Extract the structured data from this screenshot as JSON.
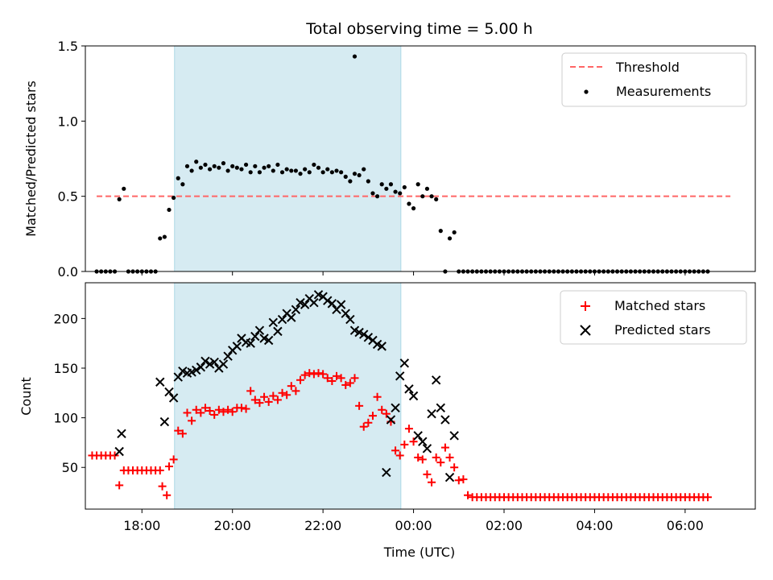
{
  "chart_data": [
    {
      "type": "scatter",
      "title": "Total observing time = 5.00 h",
      "xlabel": "",
      "ylabel": "Matched/Predicted stars",
      "xlim": [
        16.75,
        31.55
      ],
      "ylim": [
        0,
        1.5
      ],
      "yticks": [
        0,
        0.5,
        1.0,
        1.5
      ],
      "ytick_labels": [
        "0.0",
        "0.5",
        "1.0",
        "1.5"
      ],
      "xticks": [
        18,
        20,
        22,
        24,
        26,
        28,
        30
      ],
      "xtick_labels": [
        "",
        "",
        "",
        "",
        "",
        "",
        ""
      ],
      "observing_window": [
        18.72,
        23.72
      ],
      "legend": {
        "position": "top-right",
        "entries": [
          "Threshold",
          "Measurements"
        ]
      },
      "threshold": {
        "name": "Threshold",
        "value": 0.5,
        "x_range": [
          17.0,
          31.0
        ],
        "color": "#ff6666"
      },
      "series": [
        {
          "name": "Measurements",
          "color": "#000000",
          "x": [
            17.0,
            17.1,
            17.2,
            17.3,
            17.4,
            17.5,
            17.6,
            17.7,
            17.8,
            17.9,
            18.0,
            18.1,
            18.2,
            18.3,
            18.4,
            18.5,
            18.6,
            18.7,
            18.8,
            18.9,
            19.0,
            19.1,
            19.2,
            19.3,
            19.4,
            19.5,
            19.6,
            19.7,
            19.8,
            19.9,
            20.0,
            20.1,
            20.2,
            20.3,
            20.4,
            20.5,
            20.6,
            20.7,
            20.8,
            20.9,
            21.0,
            21.1,
            21.2,
            21.3,
            21.4,
            21.5,
            21.6,
            21.7,
            21.8,
            21.9,
            22.0,
            22.1,
            22.2,
            22.3,
            22.4,
            22.5,
            22.6,
            22.7,
            22.8,
            22.9,
            23.0,
            23.1,
            23.2,
            23.3,
            23.4,
            23.5,
            23.6,
            23.7,
            23.8,
            23.9,
            24.0,
            24.1,
            24.2,
            24.3,
            24.4,
            24.5,
            24.6,
            24.7,
            24.8,
            24.9,
            25.0,
            25.1,
            25.2,
            25.3,
            25.4,
            25.5,
            25.6,
            25.7,
            25.8,
            25.9,
            26.0,
            26.1,
            26.2,
            26.3,
            26.4,
            26.5,
            26.6,
            26.7,
            26.8,
            26.9,
            27.0,
            27.1,
            27.2,
            27.3,
            27.4,
            27.5,
            27.6,
            27.7,
            27.8,
            27.9,
            28.0,
            28.1,
            28.2,
            28.3,
            28.4,
            28.5,
            28.6,
            28.7,
            28.8,
            28.9,
            29.0,
            29.1,
            29.2,
            29.3,
            29.4,
            29.5,
            29.6,
            29.7,
            29.8,
            29.9,
            30.0,
            30.1,
            30.2,
            30.3,
            30.4,
            30.5
          ],
          "y": [
            0,
            0,
            0,
            0,
            0,
            0.48,
            0.55,
            0,
            0,
            0,
            0,
            0,
            0,
            0,
            0.22,
            0.23,
            0.41,
            0.49,
            0.62,
            0.58,
            0.7,
            0.67,
            0.73,
            0.69,
            0.71,
            0.68,
            0.7,
            0.69,
            0.72,
            0.67,
            0.7,
            0.69,
            0.68,
            0.71,
            0.66,
            0.7,
            0.66,
            0.69,
            0.7,
            0.67,
            0.71,
            0.66,
            0.68,
            0.67,
            0.67,
            0.65,
            0.68,
            0.66,
            0.71,
            0.69,
            0.66,
            0.68,
            0.66,
            0.67,
            0.66,
            0.63,
            0.6,
            0.65,
            0.64,
            0.68,
            0.6,
            0.52,
            0.5,
            0.58,
            0.55,
            0.58,
            0.53,
            0.52,
            0.56,
            0.45,
            0.42,
            0.58,
            0.5,
            0.55,
            0.5,
            0.48,
            0.27,
            0,
            0.22,
            0.26,
            0,
            0,
            0,
            0,
            0,
            0,
            0,
            0,
            0,
            0,
            0,
            0,
            0,
            0,
            0,
            0,
            0,
            0,
            0,
            0,
            0,
            0,
            0,
            0,
            0,
            0,
            0,
            0,
            0,
            0,
            0,
            0,
            0,
            0,
            0,
            0,
            0,
            0,
            0,
            0,
            0,
            0,
            0,
            0,
            0,
            0,
            0,
            0,
            0,
            0,
            0,
            0,
            0,
            0,
            0,
            0
          ],
          "extra_points": [
            [
              22.7,
              1.43
            ]
          ]
        }
      ]
    },
    {
      "type": "scatter",
      "title": "",
      "xlabel": "Time (UTC)",
      "ylabel": "Count",
      "xlim": [
        16.75,
        31.55
      ],
      "ylim": [
        8,
        236
      ],
      "yticks": [
        50,
        100,
        150,
        200
      ],
      "ytick_labels": [
        "50",
        "100",
        "150",
        "200"
      ],
      "xticks": [
        18,
        20,
        22,
        24,
        26,
        28,
        30
      ],
      "xtick_labels": [
        "18:00",
        "20:00",
        "22:00",
        "00:00",
        "02:00",
        "04:00",
        "06:00"
      ],
      "observing_window": [
        18.72,
        23.72
      ],
      "legend": {
        "position": "top-right",
        "entries": [
          "Matched stars",
          "Predicted stars"
        ]
      },
      "series": [
        {
          "name": "Matched stars",
          "color": "#ff0000",
          "marker": "+",
          "x": [
            16.9,
            17.0,
            17.1,
            17.2,
            17.3,
            17.4,
            17.5,
            17.6,
            17.7,
            17.8,
            17.9,
            18.0,
            18.1,
            18.2,
            18.3,
            18.4,
            18.45,
            18.55,
            18.6,
            18.7,
            18.8,
            18.9,
            19.0,
            19.1,
            19.2,
            19.3,
            19.4,
            19.5,
            19.6,
            19.7,
            19.8,
            19.9,
            20.0,
            20.1,
            20.2,
            20.3,
            20.4,
            20.5,
            20.6,
            20.7,
            20.8,
            20.9,
            21.0,
            21.1,
            21.2,
            21.3,
            21.4,
            21.5,
            21.6,
            21.7,
            21.8,
            21.9,
            22.0,
            22.1,
            22.2,
            22.3,
            22.4,
            22.5,
            22.6,
            22.7,
            22.8,
            22.9,
            23.0,
            23.1,
            23.2,
            23.3,
            23.4,
            23.5,
            23.6,
            23.7,
            23.8,
            23.9,
            24.0,
            24.1,
            24.2,
            24.3,
            24.4,
            24.5,
            24.6,
            24.7,
            24.8,
            24.9,
            25.0,
            25.1,
            25.2,
            25.3,
            25.4,
            25.5,
            25.6,
            25.7,
            25.8,
            25.9,
            26.0,
            26.1,
            26.2,
            26.3,
            26.4,
            26.5,
            26.6,
            26.7,
            26.8,
            26.9,
            27.0,
            27.1,
            27.2,
            27.3,
            27.4,
            27.5,
            27.6,
            27.7,
            27.8,
            27.9,
            28.0,
            28.1,
            28.2,
            28.3,
            28.4,
            28.5,
            28.6,
            28.7,
            28.8,
            28.9,
            29.0,
            29.1,
            29.2,
            29.3,
            29.4,
            29.5,
            29.6,
            29.7,
            29.8,
            29.9,
            30.0,
            30.1,
            30.2,
            30.3,
            30.4,
            30.5
          ],
          "y": [
            62,
            62,
            62,
            62,
            62,
            62,
            32,
            47,
            47,
            47,
            47,
            47,
            47,
            47,
            47,
            47,
            31,
            22,
            51,
            58,
            87,
            84,
            105,
            97,
            108,
            105,
            110,
            107,
            103,
            108,
            106,
            108,
            106,
            110,
            110,
            109,
            127,
            118,
            115,
            121,
            116,
            122,
            118,
            125,
            123,
            132,
            127,
            138,
            143,
            145,
            144,
            145,
            144,
            140,
            137,
            142,
            140,
            133,
            135,
            140,
            112,
            91,
            95,
            102,
            121,
            108,
            104,
            96,
            67,
            62,
            73,
            89,
            76,
            60,
            58,
            43,
            35,
            60,
            55,
            70,
            60,
            50,
            37,
            38,
            22,
            20,
            20,
            20,
            20,
            20,
            20,
            20,
            20,
            20,
            20,
            20,
            20,
            20,
            20,
            20,
            20,
            20,
            20,
            20,
            20,
            20,
            20,
            20,
            20,
            20,
            20,
            20,
            20,
            20,
            20,
            20,
            20,
            20,
            20,
            20,
            20,
            20,
            20,
            20,
            20,
            20,
            20,
            20,
            20,
            20,
            20,
            20,
            20,
            20,
            20,
            20,
            20,
            20
          ]
        },
        {
          "name": "Predicted stars",
          "color": "#000000",
          "marker": "x",
          "x": [
            17.5,
            17.55,
            18.4,
            18.5,
            18.6,
            18.7,
            18.8,
            18.9,
            19.0,
            19.1,
            19.2,
            19.3,
            19.4,
            19.5,
            19.6,
            19.7,
            19.8,
            19.9,
            20.0,
            20.1,
            20.2,
            20.3,
            20.4,
            20.5,
            20.6,
            20.7,
            20.8,
            20.9,
            21.0,
            21.1,
            21.2,
            21.3,
            21.4,
            21.5,
            21.6,
            21.7,
            21.8,
            21.9,
            22.0,
            22.1,
            22.2,
            22.3,
            22.4,
            22.5,
            22.6,
            22.7,
            22.8,
            22.9,
            23.0,
            23.1,
            23.2,
            23.3,
            23.4,
            23.5,
            23.6,
            23.7,
            23.8,
            23.9,
            24.0,
            24.1,
            24.2,
            24.3,
            24.4,
            24.5,
            24.6,
            24.7,
            24.8,
            24.9
          ],
          "y": [
            66,
            84,
            136,
            96,
            126,
            120,
            141,
            147,
            145,
            146,
            148,
            151,
            157,
            154,
            156,
            150,
            154,
            162,
            168,
            172,
            180,
            176,
            175,
            182,
            188,
            180,
            178,
            196,
            187,
            199,
            205,
            201,
            209,
            216,
            214,
            220,
            216,
            224,
            222,
            218,
            215,
            209,
            214,
            205,
            199,
            188,
            186,
            184,
            181,
            178,
            174,
            172,
            45,
            98,
            110,
            142,
            155,
            129,
            122,
            82,
            76,
            69,
            104,
            138,
            110,
            98,
            40,
            82
          ]
        }
      ]
    }
  ]
}
